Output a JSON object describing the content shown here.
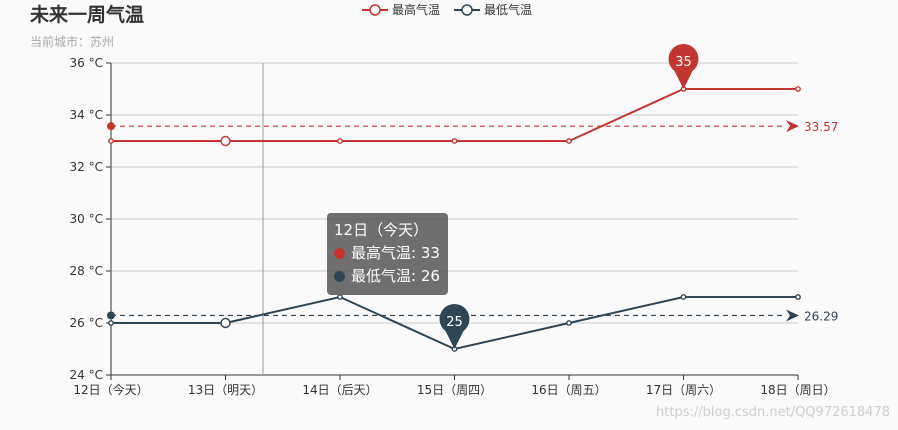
{
  "title": "未来一周气温",
  "subtitle": "当前城市：苏州",
  "tooltip": {
    "header": "12日（今天）",
    "rows": [
      {
        "label": "最高气温: 33",
        "color": "#c23531"
      },
      {
        "label": "最低气温: 26",
        "color": "#2f4554"
      }
    ]
  },
  "watermark": "https://blog.csdn.net/QQ972618478",
  "colors": {
    "high": "#c23531",
    "low": "#2f4554",
    "grid": "#cccccc",
    "axis": "#333333"
  },
  "chart_data": {
    "type": "line",
    "categories": [
      "12日（今天）",
      "13日（明天）",
      "14日（后天）",
      "15日（周四）",
      "16日（周五）",
      "17日（周六）",
      "18日（周日）"
    ],
    "series": [
      {
        "name": "最高气温",
        "values": [
          33,
          33,
          33,
          33,
          33,
          35,
          35
        ],
        "max_label": "35",
        "average_label": "33.57",
        "average": 33.57
      },
      {
        "name": "最低气温",
        "values": [
          26,
          26,
          27,
          25,
          26,
          27,
          27
        ],
        "min_label": "25",
        "average_label": "26.29",
        "average": 26.29
      }
    ],
    "ylim": [
      24,
      36
    ],
    "yticks": [
      24,
      26,
      28,
      30,
      32,
      34,
      36
    ],
    "ytick_labels": [
      "24 °C",
      "26 °C",
      "28 °C",
      "30 °C",
      "32 °C",
      "34 °C",
      "36 °C"
    ],
    "grid": true,
    "legend_position": "top-center"
  }
}
